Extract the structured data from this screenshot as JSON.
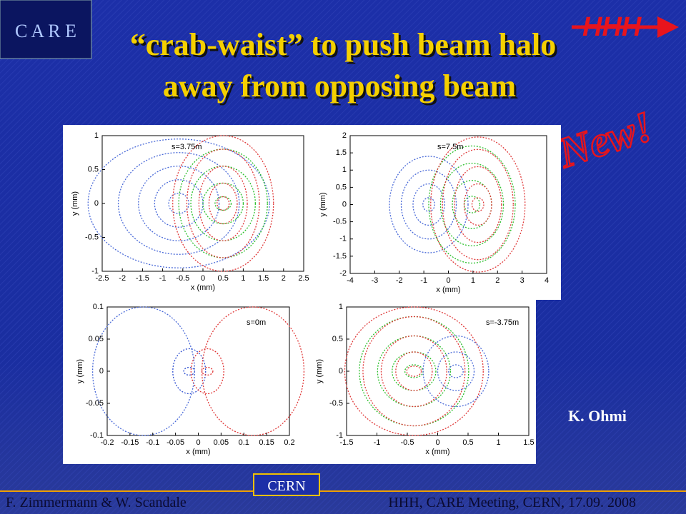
{
  "header": {
    "logo": "C A R E",
    "hhh": "HHH",
    "new_badge": "New!",
    "title_line1": "“crab-waist” to push beam halo",
    "title_line2": "away from opposing beam"
  },
  "plots": [
    {
      "label": "s=3.75m",
      "x_axis_label": "x (mm)",
      "y_axis_label": "y (mm)",
      "xticks": [
        "-2.5",
        "-2",
        "-1.5",
        "-1",
        "-0.5",
        "0",
        "0.5",
        "1",
        "1.5",
        "2",
        "2.5"
      ],
      "yticks": [
        "1",
        "0.5",
        "0",
        "-0.5",
        "-1"
      ]
    },
    {
      "label": "s=7.5m",
      "x_axis_label": "x (mm)",
      "y_axis_label": "y (mm)",
      "xticks": [
        "-4",
        "-3",
        "-2",
        "-1",
        "0",
        "1",
        "2",
        "3",
        "4"
      ],
      "yticks": [
        "2",
        "1.5",
        "1",
        "0.5",
        "0",
        "-0.5",
        "-1",
        "-1.5",
        "-2"
      ]
    },
    {
      "label": "s=0m",
      "x_axis_label": "x (mm)",
      "y_axis_label": "y (mm)",
      "xticks": [
        "-0.2",
        "-0.15",
        "-0.1",
        "-0.05",
        "0",
        "0.05",
        "0.1",
        "0.15",
        "0.2"
      ],
      "yticks": [
        "0.1",
        "0.05",
        "0",
        "-0.05",
        "-0.1"
      ]
    },
    {
      "label": "s=-3.75m",
      "x_axis_label": "x (mm)",
      "y_axis_label": "y (mm)",
      "xticks": [
        "-1.5",
        "-1",
        "-0.5",
        "0",
        "0.5",
        "1",
        "1.5"
      ],
      "yticks": [
        "1",
        "0.5",
        "0",
        "-0.5",
        "-1"
      ]
    }
  ],
  "credit": "K. Ohmi",
  "footer": {
    "left": "F. Zimmermann & W. Scandale",
    "center": "CERN",
    "right": "HHH, CARE Meeting, CERN, 17.09. 2008"
  }
}
